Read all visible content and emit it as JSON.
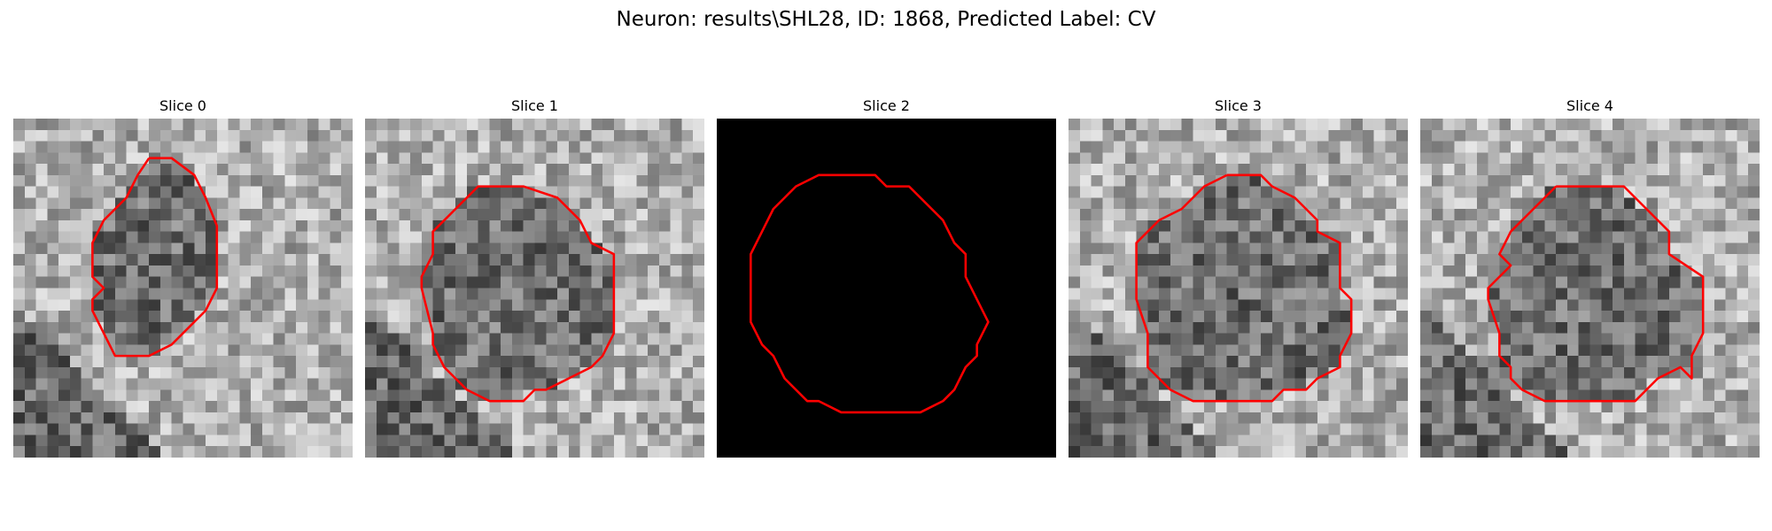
{
  "figure": {
    "title": "Neuron: results\\SHL28, ID: 1868, Predicted Label: CV"
  },
  "contour_color": "#ff0000",
  "slices": [
    {
      "label": "Slice 0",
      "content": "noise",
      "seed": 11,
      "contour": [
        [
          12,
          3.5
        ],
        [
          14,
          3.5
        ],
        [
          16,
          5
        ],
        [
          17,
          7
        ],
        [
          18,
          9.5
        ],
        [
          18,
          15
        ],
        [
          17,
          17
        ],
        [
          15,
          19
        ],
        [
          14,
          20
        ],
        [
          12,
          21
        ],
        [
          9,
          21
        ],
        [
          8,
          19
        ],
        [
          7,
          17
        ],
        [
          7,
          16
        ],
        [
          8,
          15
        ],
        [
          7,
          14
        ],
        [
          7,
          11
        ],
        [
          8,
          9
        ],
        [
          10,
          7
        ],
        [
          11,
          5
        ],
        [
          12,
          3.5
        ]
      ],
      "contour_grid": 30
    },
    {
      "label": "Slice 1",
      "content": "noise",
      "seed": 23,
      "contour": [
        [
          12,
          6
        ],
        [
          14,
          6
        ],
        [
          17,
          7
        ],
        [
          19,
          9
        ],
        [
          20,
          11
        ],
        [
          22,
          12
        ],
        [
          22,
          19
        ],
        [
          21,
          21
        ],
        [
          20,
          22
        ],
        [
          18,
          23
        ],
        [
          16,
          24
        ],
        [
          15,
          24
        ],
        [
          14,
          25
        ],
        [
          11,
          25
        ],
        [
          9,
          24
        ],
        [
          8,
          23
        ],
        [
          7,
          22
        ],
        [
          6,
          20
        ],
        [
          6,
          19
        ],
        [
          5,
          15
        ],
        [
          5,
          14
        ],
        [
          6,
          12
        ],
        [
          6,
          10
        ],
        [
          8,
          8
        ],
        [
          10,
          6
        ],
        [
          12,
          6
        ]
      ],
      "contour_grid": 30
    },
    {
      "label": "Slice 2",
      "content": "black",
      "seed": 0,
      "contour": [
        [
          11,
          5
        ],
        [
          14,
          5
        ],
        [
          15,
          6
        ],
        [
          17,
          6
        ],
        [
          19,
          8
        ],
        [
          20,
          9
        ],
        [
          21,
          11
        ],
        [
          22,
          12
        ],
        [
          22,
          14
        ],
        [
          23,
          16
        ],
        [
          24,
          18
        ],
        [
          23,
          20
        ],
        [
          23,
          21
        ],
        [
          22,
          22
        ],
        [
          21,
          24
        ],
        [
          20,
          25
        ],
        [
          18,
          26
        ],
        [
          11,
          26
        ],
        [
          9,
          25
        ],
        [
          8,
          25
        ],
        [
          6,
          23
        ],
        [
          5,
          21
        ],
        [
          4,
          20
        ],
        [
          3,
          18
        ],
        [
          3,
          12
        ],
        [
          4,
          10
        ],
        [
          5,
          8
        ],
        [
          6,
          7
        ],
        [
          7,
          6
        ],
        [
          9,
          5
        ],
        [
          11,
          5
        ]
      ],
      "contour_grid": 30
    },
    {
      "label": "Slice 3",
      "content": "noise",
      "seed": 37,
      "contour": [
        [
          14,
          5
        ],
        [
          17,
          5
        ],
        [
          18,
          6
        ],
        [
          20,
          7
        ],
        [
          22,
          9
        ],
        [
          22,
          10
        ],
        [
          24,
          11
        ],
        [
          24,
          15
        ],
        [
          25,
          16
        ],
        [
          25,
          19
        ],
        [
          24,
          21
        ],
        [
          24,
          22
        ],
        [
          22,
          23
        ],
        [
          21,
          24
        ],
        [
          19,
          24
        ],
        [
          18,
          25
        ],
        [
          15,
          25
        ],
        [
          13,
          25
        ],
        [
          11,
          25
        ],
        [
          9,
          24
        ],
        [
          8,
          23
        ],
        [
          7,
          22
        ],
        [
          7,
          19
        ],
        [
          6,
          16
        ],
        [
          6,
          11
        ],
        [
          7,
          10
        ],
        [
          8,
          9
        ],
        [
          10,
          8
        ],
        [
          12,
          6
        ],
        [
          14,
          5
        ]
      ],
      "contour_grid": 30
    },
    {
      "label": "Slice 4",
      "content": "noise",
      "seed": 53,
      "contour": [
        [
          12,
          6
        ],
        [
          18,
          6
        ],
        [
          19,
          7
        ],
        [
          20,
          8
        ],
        [
          22,
          10
        ],
        [
          22,
          12
        ],
        [
          25,
          14
        ],
        [
          25,
          19
        ],
        [
          24,
          21
        ],
        [
          24,
          23
        ],
        [
          23,
          22
        ],
        [
          21,
          23
        ],
        [
          20,
          24
        ],
        [
          19,
          25
        ],
        [
          14,
          25
        ],
        [
          11,
          25
        ],
        [
          9,
          24
        ],
        [
          8,
          23
        ],
        [
          8,
          22
        ],
        [
          7,
          21
        ],
        [
          7,
          19
        ],
        [
          6,
          16
        ],
        [
          6,
          15
        ],
        [
          8,
          13
        ],
        [
          7,
          12
        ],
        [
          8,
          10
        ],
        [
          10,
          8
        ],
        [
          12,
          6
        ]
      ],
      "contour_grid": 30
    }
  ]
}
